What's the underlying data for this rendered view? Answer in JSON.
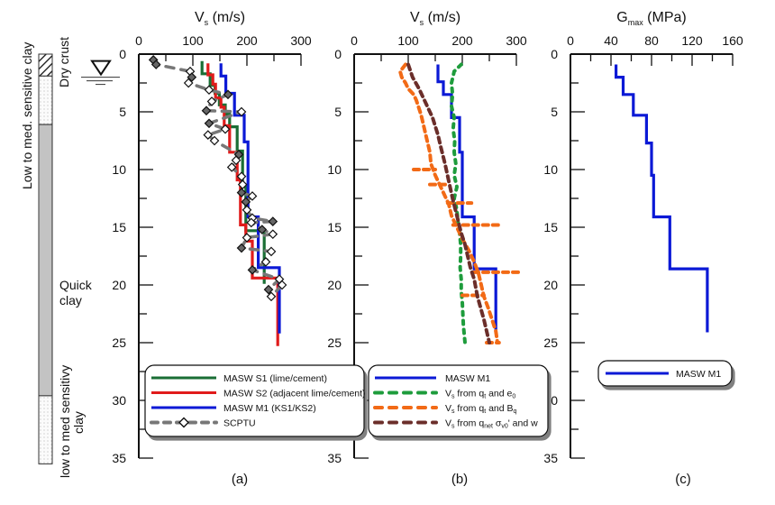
{
  "chart_data": [
    {
      "type": "line",
      "panel_label": "(a)",
      "title": "",
      "xlabel_main": "V",
      "xlabel_sub": "s",
      "xlabel_rest": " (m/s)",
      "ylabel": "",
      "xlim": [
        0,
        300
      ],
      "ylim": [
        0,
        35
      ],
      "y_inverted": true,
      "x_axis_position": "top",
      "x_ticks": [
        0,
        100,
        200,
        300
      ],
      "y_ticks": [
        0,
        5,
        10,
        15,
        20,
        25,
        30,
        35
      ],
      "grid": false,
      "legend_position": "bottom",
      "series": [
        {
          "name": "MASW S1 (lime/cement)",
          "color": "#1a6e35",
          "style": "step",
          "points": [
            [
              117,
              0.6
            ],
            [
              117,
              1.7
            ],
            [
              132,
              1.7
            ],
            [
              132,
              2.7
            ],
            [
              141,
              2.7
            ],
            [
              141,
              3.4
            ],
            [
              149,
              3.4
            ],
            [
              149,
              4.4
            ],
            [
              160,
              4.4
            ],
            [
              160,
              5.2
            ],
            [
              168,
              5.2
            ],
            [
              168,
              6.3
            ],
            [
              182,
              6.3
            ],
            [
              182,
              8.4
            ],
            [
              192,
              8.4
            ],
            [
              192,
              11.5
            ],
            [
              198,
              11.5
            ],
            [
              198,
              15.3
            ],
            [
              232,
              15.3
            ],
            [
              232,
              19.9
            ]
          ]
        },
        {
          "name": "MASW S2 (adjacent lime/cement)",
          "color": "#e01b1b",
          "style": "step",
          "points": [
            [
              128,
              0.8
            ],
            [
              128,
              1.8
            ],
            [
              137,
              1.8
            ],
            [
              137,
              2.6
            ],
            [
              142,
              2.6
            ],
            [
              142,
              3.8
            ],
            [
              152,
              3.8
            ],
            [
              152,
              4.6
            ],
            [
              158,
              4.6
            ],
            [
              158,
              6.2
            ],
            [
              168,
              6.2
            ],
            [
              168,
              8.5
            ],
            [
              182,
              8.5
            ],
            [
              182,
              10.9
            ],
            [
              188,
              10.9
            ],
            [
              188,
              14.8
            ],
            [
              198,
              14.8
            ],
            [
              198,
              16.2
            ],
            [
              210,
              16.2
            ],
            [
              210,
              19.4
            ],
            [
              257,
              19.4
            ],
            [
              257,
              25.3
            ]
          ]
        },
        {
          "name": "MASW M1 (KS1/KS2)",
          "color": "#0b19d6",
          "style": "step",
          "points": [
            [
              152,
              0.8
            ],
            [
              152,
              1.9
            ],
            [
              161,
              1.9
            ],
            [
              161,
              3.4
            ],
            [
              177,
              3.4
            ],
            [
              177,
              5.3
            ],
            [
              195,
              5.3
            ],
            [
              195,
              7.6
            ],
            [
              202,
              7.6
            ],
            [
              202,
              14.1
            ],
            [
              221,
              14.1
            ],
            [
              221,
              18.5
            ],
            [
              260,
              18.5
            ],
            [
              260,
              24.2
            ]
          ]
        },
        {
          "name": "SCPTU",
          "color": "#777777",
          "style": "dashed-markers",
          "points": [
            [
              27,
              0.5
            ],
            [
              32,
              0.9
            ],
            [
              95,
              1.5
            ],
            [
              98,
              2.0
            ],
            [
              92,
              2.5
            ],
            [
              130,
              3.1
            ],
            [
              165,
              3.5
            ],
            [
              135,
              4.1
            ],
            [
              125,
              4.9
            ],
            [
              190,
              5.0
            ],
            [
              130,
              6.0
            ],
            [
              160,
              6.5
            ],
            [
              128,
              7.0
            ],
            [
              140,
              7.5
            ],
            [
              185,
              8.7
            ],
            [
              180,
              9.2
            ],
            [
              172,
              9.8
            ],
            [
              190,
              10.6
            ],
            [
              192,
              11.3
            ],
            [
              190,
              12.0
            ],
            [
              210,
              12.3
            ],
            [
              198,
              12.8
            ],
            [
              200,
              13.5
            ],
            [
              210,
              14.2
            ],
            [
              248,
              14.5
            ],
            [
              208,
              14.6
            ],
            [
              228,
              15.2
            ],
            [
              248,
              15.6
            ],
            [
              200,
              15.9
            ],
            [
              190,
              16.8
            ],
            [
              245,
              17.1
            ],
            [
              235,
              18.0
            ],
            [
              210,
              18.7
            ],
            [
              260,
              19.5
            ],
            [
              240,
              20.4
            ],
            [
              245,
              21.0
            ],
            [
              265,
              20.0
            ]
          ],
          "filled_marker_indices": [
            0,
            1,
            3,
            6,
            8,
            10,
            14,
            19,
            21,
            24,
            26,
            29,
            32,
            34
          ]
        }
      ]
    },
    {
      "type": "line",
      "panel_label": "(b)",
      "title": "",
      "xlabel_main": "V",
      "xlabel_sub": "s",
      "xlabel_rest": " (m/s)",
      "xlim": [
        0,
        300
      ],
      "ylim": [
        0,
        35
      ],
      "y_inverted": true,
      "x_axis_position": "top",
      "x_ticks": [
        0,
        100,
        200,
        300
      ],
      "y_ticks": [
        0,
        5,
        10,
        15,
        20,
        25,
        30,
        35
      ],
      "grid": false,
      "legend_position": "bottom",
      "series": [
        {
          "name": "MASW M1",
          "color": "#0b19d6",
          "style": "step",
          "points": [
            [
              155,
              0.9
            ],
            [
              155,
              2.4
            ],
            [
              165,
              2.4
            ],
            [
              165,
              3.5
            ],
            [
              180,
              3.5
            ],
            [
              180,
              5.5
            ],
            [
              195,
              5.5
            ],
            [
              195,
              8.5
            ],
            [
              200,
              8.5
            ],
            [
              200,
              14.1
            ],
            [
              222,
              14.1
            ],
            [
              222,
              18.6
            ],
            [
              262,
              18.6
            ],
            [
              262,
              24.2
            ]
          ]
        },
        {
          "name": "Vs from qt and e0",
          "label_parts": [
            "V",
            "s",
            " from q",
            "t",
            " and e",
            "0"
          ],
          "color": "#1e9c3c",
          "style": "dotted",
          "points": [
            [
              198,
              0.9
            ],
            [
              185,
              1.5
            ],
            [
              180,
              2.5
            ],
            [
              182,
              3.5
            ],
            [
              180,
              4.5
            ],
            [
              185,
              5.5
            ],
            [
              183,
              6.5
            ],
            [
              186,
              7.5
            ],
            [
              185,
              8.5
            ],
            [
              188,
              9.5
            ],
            [
              185,
              10.5
            ],
            [
              190,
              11.5
            ],
            [
              185,
              12.5
            ],
            [
              190,
              13.5
            ],
            [
              192,
              14.5
            ],
            [
              195,
              15.5
            ],
            [
              197,
              16.5
            ],
            [
              197,
              17.5
            ],
            [
              196,
              18.5
            ],
            [
              198,
              19.5
            ],
            [
              198,
              20.5
            ],
            [
              200,
              21.5
            ],
            [
              201,
              22.5
            ],
            [
              202,
              23.5
            ],
            [
              205,
              25.0
            ]
          ]
        },
        {
          "name": "Vs from qt and Bq",
          "label_parts": [
            "V",
            "s",
            " from q",
            "t",
            " and B",
            "q"
          ],
          "color": "#f26a16",
          "style": "dashed",
          "points": [
            [
              95,
              0.9
            ],
            [
              85,
              1.5
            ],
            [
              88,
              2.0
            ],
            [
              95,
              2.5
            ],
            [
              100,
              3.0
            ],
            [
              110,
              3.5
            ],
            [
              115,
              4.0
            ],
            [
              122,
              5.0
            ],
            [
              125,
              5.5
            ],
            [
              130,
              6.5
            ],
            [
              135,
              7.5
            ],
            [
              140,
              8.5
            ],
            [
              142,
              9.5
            ],
            [
              150,
              10.5
            ],
            [
              160,
              11.5
            ],
            [
              170,
              12.5
            ],
            [
              175,
              13.0
            ],
            [
              180,
              14.0
            ],
            [
              190,
              15.0
            ],
            [
              200,
              16.0
            ],
            [
              212,
              17.0
            ],
            [
              222,
              18.0
            ],
            [
              230,
              19.0
            ],
            [
              235,
              20.0
            ],
            [
              240,
              21.0
            ],
            [
              248,
              22.0
            ],
            [
              255,
              23.0
            ],
            [
              262,
              24.0
            ],
            [
              265,
              25.0
            ]
          ],
          "spikes": [
            [
              110,
              10.0,
              150
            ],
            [
              140,
              11.3,
              175
            ],
            [
              173,
              12.9,
              217
            ],
            [
              183,
              14.8,
              267
            ],
            [
              220,
              18.9,
              307
            ],
            [
              200,
              20.9,
              240
            ],
            [
              245,
              25.0,
              268
            ]
          ]
        },
        {
          "name": "Vs from qnet σv0' and w",
          "label_parts": [
            "V",
            "s",
            " from q",
            "net",
            " σ",
            "v0",
            "' and w"
          ],
          "color": "#6b2e2a",
          "style": "dashed",
          "points": [
            [
              100,
              0.9
            ],
            [
              108,
              2.0
            ],
            [
              120,
              3.0
            ],
            [
              135,
              4.5
            ],
            [
              145,
              5.5
            ],
            [
              155,
              7.0
            ],
            [
              160,
              8.0
            ],
            [
              168,
              9.5
            ],
            [
              175,
              11.0
            ],
            [
              182,
              12.5
            ],
            [
              190,
              14.0
            ],
            [
              198,
              15.5
            ],
            [
              205,
              16.5
            ],
            [
              210,
              17.5
            ],
            [
              215,
              18.5
            ],
            [
              222,
              19.5
            ],
            [
              228,
              21.0
            ],
            [
              234,
              22.0
            ],
            [
              240,
              23.0
            ],
            [
              245,
              24.0
            ],
            [
              250,
              25.0
            ]
          ]
        }
      ]
    },
    {
      "type": "line",
      "panel_label": "(c)",
      "title": "",
      "xlabel_main": "G",
      "xlabel_sub": "max",
      "xlabel_rest": " (MPa)",
      "xlim": [
        0,
        160
      ],
      "ylim": [
        0,
        35
      ],
      "y_inverted": true,
      "x_axis_position": "top",
      "x_ticks": [
        0,
        40,
        80,
        120,
        160
      ],
      "y_ticks": [
        0,
        5,
        10,
        15,
        20,
        25,
        30,
        35
      ],
      "grid": false,
      "legend_position": "bottom-right",
      "series": [
        {
          "name": "MASW M1",
          "color": "#0b19d6",
          "style": "step",
          "points": [
            [
              45,
              0.9
            ],
            [
              45,
              2.0
            ],
            [
              52,
              2.0
            ],
            [
              52,
              3.5
            ],
            [
              62,
              3.5
            ],
            [
              62,
              5.3
            ],
            [
              75,
              5.3
            ],
            [
              75,
              7.7
            ],
            [
              80,
              7.7
            ],
            [
              80,
              10.5
            ],
            [
              82,
              10.5
            ],
            [
              82,
              14.1
            ],
            [
              98,
              14.1
            ],
            [
              98,
              18.6
            ],
            [
              135,
              18.6
            ],
            [
              135,
              24.1
            ]
          ]
        }
      ]
    }
  ],
  "strata": {
    "layers": [
      {
        "name": "Dry crust",
        "from": 0,
        "to": 1.9,
        "pattern": "hatch"
      },
      {
        "name": "Low to med. sensitive clay (upper)",
        "from": 1.9,
        "to": 6.1,
        "pattern": "light-dots"
      },
      {
        "name": "Quick clay",
        "from": 6.1,
        "to": 29.6,
        "pattern": "dense-dots"
      },
      {
        "name": "low to med sensitivy clay",
        "from": 29.6,
        "to": 35.5,
        "pattern": "light-dots"
      }
    ],
    "labels": {
      "low_to_med_sensitive_clay": "Low to med. sensitive clay",
      "dry_crust": "Dry crust",
      "quick_clay_line1": "Quick",
      "quick_clay_line2": "clay",
      "lower_clay_line1": "low to med sensitivy",
      "lower_clay_line2": "clay"
    },
    "groundwater_level_m": 2.0
  }
}
